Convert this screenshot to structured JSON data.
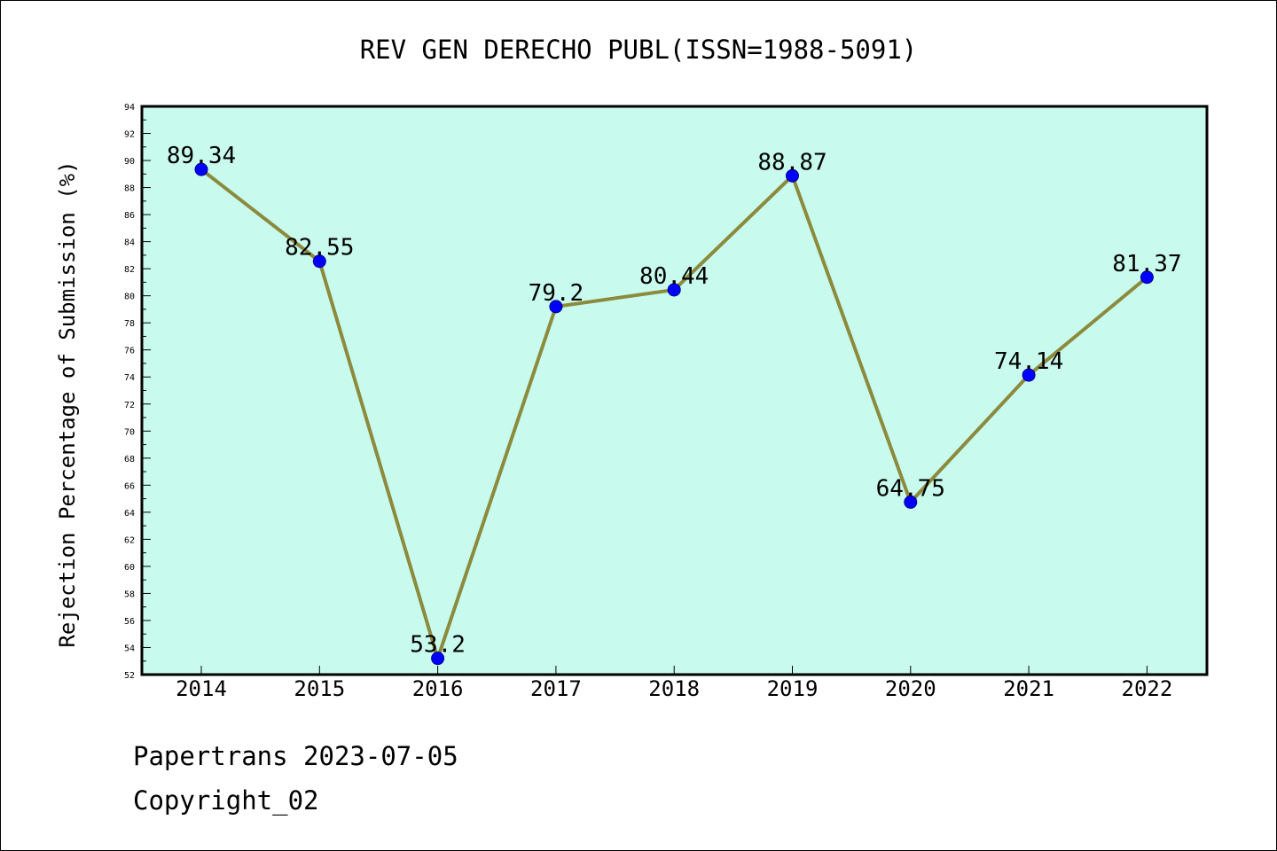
{
  "chart_data": {
    "type": "line",
    "title": "REV GEN DERECHO PUBL(ISSN=1988-5091)",
    "xlabel": "",
    "ylabel": "Rejection Percentage of Submission (%)",
    "categories": [
      "2014",
      "2015",
      "2016",
      "2017",
      "2018",
      "2019",
      "2020",
      "2021",
      "2022"
    ],
    "series": [
      {
        "values": [
          89.34,
          82.55,
          53.2,
          79.2,
          80.44,
          88.87,
          64.75,
          74.14,
          81.37
        ],
        "labels": [
          "89.34",
          "82.55",
          "53.2",
          "79.2",
          "80.44",
          "88.87",
          "64.75",
          "74.14",
          "81.37"
        ],
        "line_color": "#8c8a3c",
        "marker_color": "#0000ff"
      }
    ],
    "ylim": [
      52,
      94
    ],
    "yticks": [
      "52",
      "54",
      "56",
      "58",
      "60",
      "62",
      "64",
      "66",
      "68",
      "70",
      "72",
      "74",
      "76",
      "78",
      "80",
      "82",
      "84",
      "86",
      "88",
      "90",
      "92",
      "94"
    ],
    "plot_background": "#c8fbee",
    "grid": false,
    "legend": "none"
  },
  "footer": {
    "source_text": "Papertrans 2023-07-05",
    "copyright_text": "Copyright_02"
  }
}
